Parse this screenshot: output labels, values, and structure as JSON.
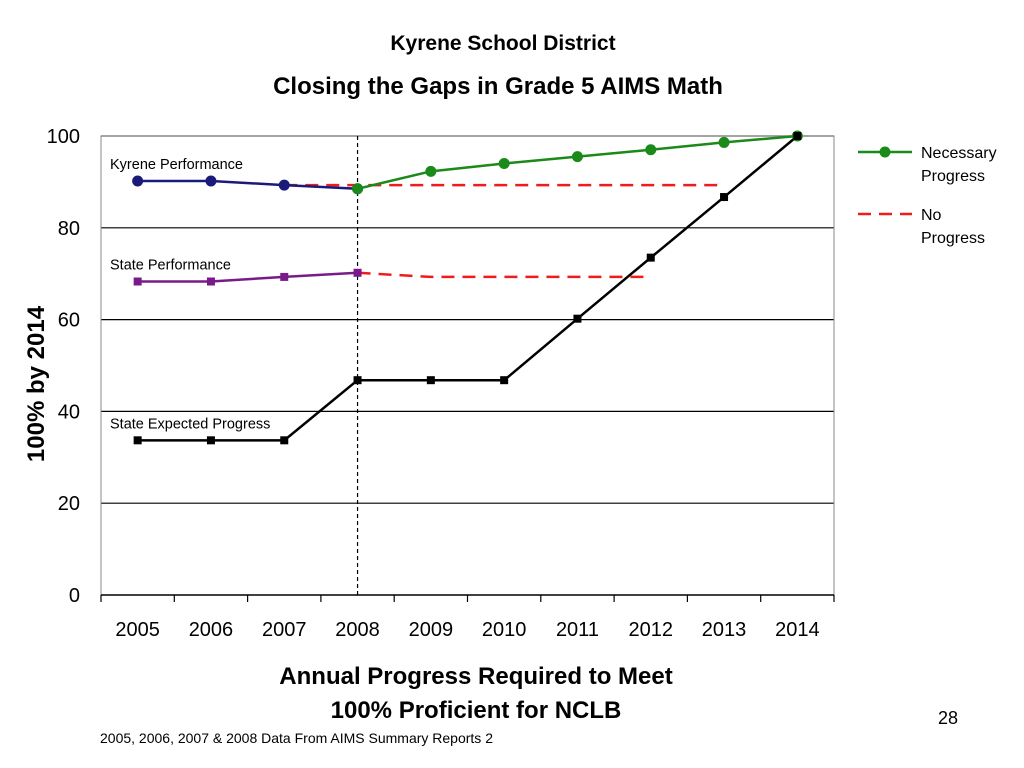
{
  "slide": {
    "title": "Kyrene School District",
    "subtitle": "Closing the Gaps in Grade 5 AIMS Math",
    "x_title_line1": "Annual Progress Required to Meet",
    "x_title_line2": "100% Proficient for NCLB",
    "page_number": "28",
    "source_note": "2005, 2006, 2007 & 2008 Data From AIMS Summary Reports 2"
  },
  "chart_data": {
    "type": "line",
    "title": "Closing the Gaps in Grade 5 AIMS Math",
    "xlabel": "Annual Progress Required to Meet 100% Proficient for NCLB",
    "ylabel": "100% by 2014",
    "categories": [
      "2005",
      "2006",
      "2007",
      "2008",
      "2009",
      "2010",
      "2011",
      "2012",
      "2013",
      "2014"
    ],
    "ylim": [
      0,
      100
    ],
    "yticks": [
      0,
      20,
      40,
      60,
      80,
      100
    ],
    "grid": true,
    "legend_position": "right",
    "reference_line_x": "2008",
    "series": [
      {
        "label": "Kyrene Performance",
        "color": "#1a1a7a",
        "marker": "circle",
        "line": "solid",
        "values": [
          90.2,
          90.2,
          89.3,
          88.5,
          null,
          null,
          null,
          null,
          null,
          null
        ]
      },
      {
        "name": "Necessary Progress",
        "color": "#1a8a1a",
        "marker": "circle",
        "line": "solid",
        "values": [
          null,
          null,
          null,
          88.5,
          92.3,
          94.0,
          95.5,
          97.0,
          98.6,
          100
        ]
      },
      {
        "name": "No Progress",
        "color": "#ee1c1c",
        "marker": "none",
        "line": "dashed",
        "values": [
          null,
          null,
          89.3,
          89.3,
          89.3,
          89.3,
          89.3,
          89.3,
          89.3,
          null
        ]
      },
      {
        "label": "State Performance",
        "color": "#7a1a8a",
        "marker": "square",
        "line": "solid",
        "values": [
          68.3,
          68.3,
          69.3,
          70.2,
          null,
          null,
          null,
          null,
          null,
          null
        ]
      },
      {
        "name": "",
        "color": "#ee1c1c",
        "marker": "none",
        "line": "dashed",
        "values": [
          null,
          null,
          null,
          70.2,
          69.3,
          69.3,
          69.3,
          69.3,
          null,
          null
        ]
      },
      {
        "label": "State Expected Progress",
        "color": "#000000",
        "marker": "square",
        "line": "solid",
        "values": [
          33.7,
          33.7,
          33.7,
          46.8,
          46.8,
          46.8,
          60.2,
          73.5,
          86.7,
          100
        ]
      }
    ]
  }
}
